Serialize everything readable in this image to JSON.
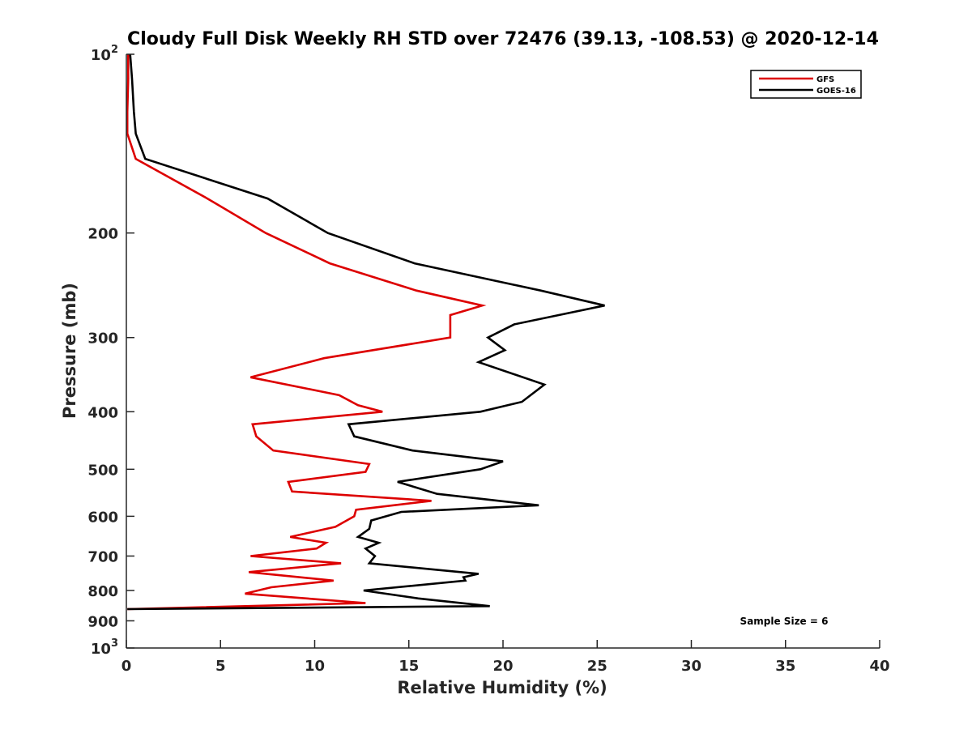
{
  "chart_data": {
    "type": "line",
    "title": "Cloudy Full Disk Weekly RH STD over 72476 (39.13, -108.53) @ 2020-12-14",
    "xlabel": "Relative Humidity (%)",
    "ylabel": "Pressure (mb)",
    "xlim": [
      0,
      40
    ],
    "ylim": [
      100,
      1000
    ],
    "y_scale": "log",
    "y_reversed": true,
    "grid": false,
    "legend_position": "top-right",
    "x_ticks": [
      "0",
      "5",
      "10",
      "15",
      "20",
      "25",
      "30",
      "35",
      "40"
    ],
    "y_ticks": [
      {
        "value": 100,
        "base": "10",
        "exp": "2"
      },
      {
        "value": 200,
        "label": "200"
      },
      {
        "value": 300,
        "label": "300"
      },
      {
        "value": 400,
        "label": "400"
      },
      {
        "value": 500,
        "label": "500"
      },
      {
        "value": 600,
        "label": "600"
      },
      {
        "value": 700,
        "label": "700"
      },
      {
        "value": 800,
        "label": "800"
      },
      {
        "value": 900,
        "label": "900"
      },
      {
        "value": 1000,
        "base": "10",
        "exp": "3"
      }
    ],
    "annotation": "Sample Size = 6",
    "series": [
      {
        "name": "GFS",
        "color": "#dd0000",
        "points": [
          [
            0.1,
            100
          ],
          [
            0.1,
            110
          ],
          [
            0.05,
            125
          ],
          [
            0.05,
            136
          ],
          [
            0.5,
            150
          ],
          [
            4.3,
            175
          ],
          [
            7.4,
            200
          ],
          [
            10.8,
            225
          ],
          [
            15.4,
            250
          ],
          [
            18.9,
            265
          ],
          [
            17.2,
            275
          ],
          [
            17.2,
            300
          ],
          [
            10.5,
            325
          ],
          [
            6.6,
            350
          ],
          [
            11.3,
            375
          ],
          [
            12.3,
            390
          ],
          [
            13.6,
            400
          ],
          [
            6.7,
            420
          ],
          [
            6.9,
            440
          ],
          [
            7.8,
            465
          ],
          [
            12.9,
            490
          ],
          [
            12.7,
            505
          ],
          [
            8.6,
            525
          ],
          [
            8.8,
            545
          ],
          [
            16.2,
            565
          ],
          [
            12.2,
            585
          ],
          [
            12.1,
            600
          ],
          [
            11.1,
            625
          ],
          [
            8.7,
            650
          ],
          [
            10.6,
            665
          ],
          [
            10.1,
            680
          ],
          [
            6.6,
            700
          ],
          [
            11.4,
            720
          ],
          [
            6.5,
            745
          ],
          [
            11.0,
            770
          ],
          [
            7.7,
            790
          ],
          [
            6.3,
            810
          ],
          [
            12.7,
            840
          ],
          [
            0.05,
            860
          ]
        ]
      },
      {
        "name": "GOES-16",
        "color": "#000000",
        "points": [
          [
            0.2,
            100
          ],
          [
            0.3,
            110
          ],
          [
            0.4,
            125
          ],
          [
            0.5,
            136
          ],
          [
            1.0,
            150
          ],
          [
            7.5,
            175
          ],
          [
            10.7,
            200
          ],
          [
            15.3,
            225
          ],
          [
            22.0,
            250
          ],
          [
            25.4,
            265
          ],
          [
            20.6,
            285
          ],
          [
            19.2,
            300
          ],
          [
            20.1,
            315
          ],
          [
            18.7,
            330
          ],
          [
            22.2,
            360
          ],
          [
            21.0,
            385
          ],
          [
            18.8,
            400
          ],
          [
            11.8,
            420
          ],
          [
            12.1,
            440
          ],
          [
            15.2,
            465
          ],
          [
            20.0,
            485
          ],
          [
            18.8,
            500
          ],
          [
            14.4,
            525
          ],
          [
            16.5,
            550
          ],
          [
            21.9,
            575
          ],
          [
            14.6,
            590
          ],
          [
            13.0,
            610
          ],
          [
            12.9,
            630
          ],
          [
            12.3,
            650
          ],
          [
            13.4,
            665
          ],
          [
            12.7,
            680
          ],
          [
            13.2,
            700
          ],
          [
            12.9,
            720
          ],
          [
            18.7,
            750
          ],
          [
            17.9,
            760
          ],
          [
            18.0,
            770
          ],
          [
            12.6,
            800
          ],
          [
            15.5,
            825
          ],
          [
            19.3,
            850
          ],
          [
            0.05,
            860
          ]
        ]
      }
    ]
  }
}
